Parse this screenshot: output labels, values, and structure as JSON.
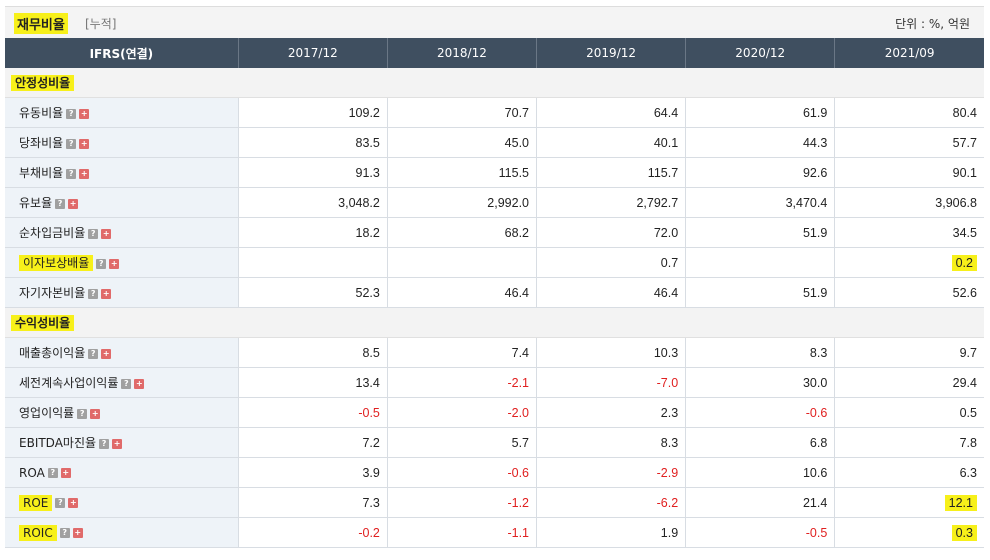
{
  "header": {
    "title": "재무비율",
    "subtitle": "[누적]",
    "unit": "단위 : %, 억원"
  },
  "table": {
    "col_header": "IFRS(연결)",
    "years": [
      "2017/12",
      "2018/12",
      "2019/12",
      "2020/12",
      "2021/09"
    ]
  },
  "sections": [
    {
      "name": "안정성비율",
      "rows": [
        {
          "label": "유동비율",
          "values": [
            "109.2",
            "70.7",
            "64.4",
            "61.9",
            "80.4"
          ]
        },
        {
          "label": "당좌비율",
          "values": [
            "83.5",
            "45.0",
            "40.1",
            "44.3",
            "57.7"
          ]
        },
        {
          "label": "부채비율",
          "values": [
            "91.3",
            "115.5",
            "115.7",
            "92.6",
            "90.1"
          ]
        },
        {
          "label": "유보율",
          "values": [
            "3,048.2",
            "2,992.0",
            "2,792.7",
            "3,470.4",
            "3,906.8"
          ]
        },
        {
          "label": "순차입금비율",
          "values": [
            "18.2",
            "68.2",
            "72.0",
            "51.9",
            "34.5"
          ]
        },
        {
          "label": "이자보상배율",
          "values": [
            "",
            "",
            "0.7",
            "",
            "0.2"
          ]
        },
        {
          "label": "자기자본비율",
          "values": [
            "52.3",
            "46.4",
            "46.4",
            "51.9",
            "52.6"
          ]
        }
      ]
    },
    {
      "name": "수익성비율",
      "rows": [
        {
          "label": "매출총이익율",
          "values": [
            "8.5",
            "7.4",
            "10.3",
            "8.3",
            "9.7"
          ]
        },
        {
          "label": "세전계속사업이익률",
          "values": [
            "13.4",
            "-2.1",
            "-7.0",
            "30.0",
            "29.4"
          ]
        },
        {
          "label": "영업이익률",
          "values": [
            "-0.5",
            "-2.0",
            "2.3",
            "-0.6",
            "0.5"
          ]
        },
        {
          "label": "EBITDA마진율",
          "values": [
            "7.2",
            "5.7",
            "8.3",
            "6.8",
            "7.8"
          ]
        },
        {
          "label": "ROA",
          "values": [
            "3.9",
            "-0.6",
            "-2.9",
            "10.6",
            "6.3"
          ]
        },
        {
          "label": "ROE",
          "values": [
            "7.3",
            "-1.2",
            "-6.2",
            "21.4",
            "12.1"
          ]
        },
        {
          "label": "ROIC",
          "values": [
            "-0.2",
            "-1.1",
            "1.9",
            "-0.5",
            "0.3"
          ]
        }
      ]
    }
  ],
  "icons": {
    "help": "help-icon",
    "expand": "expand-plus-icon"
  },
  "colors": {
    "header_bg": "#3f4f60",
    "negative": "#e02020",
    "highlight": "#f7f01a",
    "label_bg": "#eef3f8"
  }
}
